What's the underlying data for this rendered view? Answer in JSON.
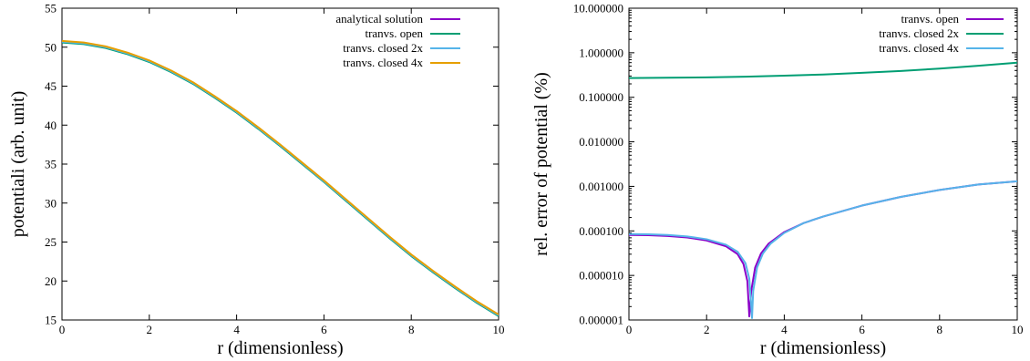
{
  "chart_data": [
    {
      "type": "line",
      "xlabel": "r (dimensionless)",
      "ylabel": "potentiali (arb. unit)",
      "xlim": [
        0,
        10
      ],
      "ylim": [
        15,
        55
      ],
      "xticks": [
        "0",
        "2",
        "4",
        "6",
        "8",
        "10"
      ],
      "yticks": [
        "15",
        "20",
        "25",
        "30",
        "35",
        "40",
        "45",
        "50",
        "55"
      ],
      "legend_position": "top-right",
      "series": [
        {
          "name": "analytical solution",
          "color": "#8b00c8",
          "x": [
            0,
            0.5,
            1,
            1.5,
            2,
            2.5,
            3,
            3.5,
            4,
            4.5,
            5,
            5.5,
            6,
            6.5,
            7,
            7.5,
            8,
            8.5,
            9,
            9.5,
            10
          ],
          "y": [
            50.7,
            50.5,
            50.0,
            49.2,
            48.2,
            46.9,
            45.4,
            43.6,
            41.7,
            39.6,
            37.4,
            35.1,
            32.8,
            30.4,
            28.0,
            25.6,
            23.3,
            21.2,
            19.2,
            17.3,
            15.6
          ]
        },
        {
          "name": "tranvs. open",
          "color": "#009e73",
          "x": [
            0,
            0.5,
            1,
            1.5,
            2,
            2.5,
            3,
            3.5,
            4,
            4.5,
            5,
            5.5,
            6,
            6.5,
            7,
            7.5,
            8,
            8.5,
            9,
            9.5,
            10
          ],
          "y": [
            50.6,
            50.4,
            49.9,
            49.1,
            48.1,
            46.8,
            45.3,
            43.5,
            41.6,
            39.5,
            37.3,
            35.0,
            32.7,
            30.3,
            27.9,
            25.5,
            23.2,
            21.1,
            19.1,
            17.2,
            15.5
          ]
        },
        {
          "name": "tranvs. closed 2x",
          "color": "#56b4e9",
          "x": [
            0,
            0.5,
            1,
            1.5,
            2,
            2.5,
            3,
            3.5,
            4,
            4.5,
            5,
            5.5,
            6,
            6.5,
            7,
            7.5,
            8,
            8.5,
            9,
            9.5,
            10
          ],
          "y": [
            50.7,
            50.5,
            50.0,
            49.2,
            48.2,
            46.9,
            45.4,
            43.6,
            41.7,
            39.6,
            37.4,
            35.1,
            32.8,
            30.4,
            28.0,
            25.6,
            23.3,
            21.2,
            19.2,
            17.3,
            15.6
          ]
        },
        {
          "name": "tranvs. closed 4x",
          "color": "#e69f00",
          "x": [
            0,
            0.5,
            1,
            1.5,
            2,
            2.5,
            3,
            3.5,
            4,
            4.5,
            5,
            5.5,
            6,
            6.5,
            7,
            7.5,
            8,
            8.5,
            9,
            9.5,
            10
          ],
          "y": [
            50.8,
            50.6,
            50.1,
            49.3,
            48.3,
            47.0,
            45.5,
            43.7,
            41.8,
            39.7,
            37.5,
            35.2,
            32.9,
            30.5,
            28.1,
            25.7,
            23.4,
            21.3,
            19.3,
            17.4,
            15.7
          ]
        }
      ]
    },
    {
      "type": "line",
      "xlabel": "r (dimensionless)",
      "ylabel": "rel. error of potential (%)",
      "xlim": [
        0,
        10
      ],
      "ylim": [
        1e-06,
        10
      ],
      "yscale": "log",
      "xticks": [
        "0",
        "2",
        "4",
        "6",
        "8",
        "10"
      ],
      "yticks": [
        "0.000001",
        "0.000010",
        "0.000100",
        "0.001000",
        "0.010000",
        "0.100000",
        "1.000000",
        "10.000000"
      ],
      "legend_position": "top-right",
      "series": [
        {
          "name": "tranvs. open",
          "color": "#8b00c8",
          "x": [
            0,
            0.5,
            1,
            1.5,
            2,
            2.5,
            2.8,
            2.95,
            3.05,
            3.1,
            3.15,
            3.25,
            3.4,
            3.6,
            4,
            4.5,
            5,
            6,
            7,
            8,
            9,
            10
          ],
          "y": [
            8.1e-05,
            8e-05,
            7.7e-05,
            7.1e-05,
            6.1e-05,
            4.5e-05,
            3e-05,
            1.8e-05,
            7.5e-06,
            1.2e-06,
            4.5e-06,
            1.5e-05,
            3.1e-05,
            5.2e-05,
            9.4e-05,
            0.00015,
            0.00021,
            0.00037,
            0.00058,
            0.00083,
            0.0011,
            0.0013
          ]
        },
        {
          "name": "tranvs. closed 2x",
          "color": "#009e73",
          "x": [
            0,
            1,
            2,
            3,
            4,
            5,
            6,
            7,
            8,
            9,
            10
          ],
          "y": [
            0.27,
            0.275,
            0.28,
            0.29,
            0.305,
            0.325,
            0.355,
            0.39,
            0.44,
            0.51,
            0.6
          ]
        },
        {
          "name": "tranvs. closed 4x",
          "color": "#56b4e9",
          "x": [
            0,
            0.5,
            1,
            1.5,
            2,
            2.5,
            2.8,
            3.0,
            3.1,
            3.17,
            3.2,
            3.3,
            3.45,
            3.65,
            4,
            4.5,
            5,
            6,
            7,
            8,
            9,
            10
          ],
          "y": [
            8.5e-05,
            8.4e-05,
            8.1e-05,
            7.5e-05,
            6.5e-05,
            4.9e-05,
            3.4e-05,
            1.9e-05,
            8.5e-06,
            1.1e-06,
            4.5e-06,
            1.5e-05,
            3.1e-05,
            5.2e-05,
            9e-05,
            0.00015,
            0.00021,
            0.00037,
            0.00058,
            0.00083,
            0.0011,
            0.0013
          ]
        }
      ]
    }
  ]
}
